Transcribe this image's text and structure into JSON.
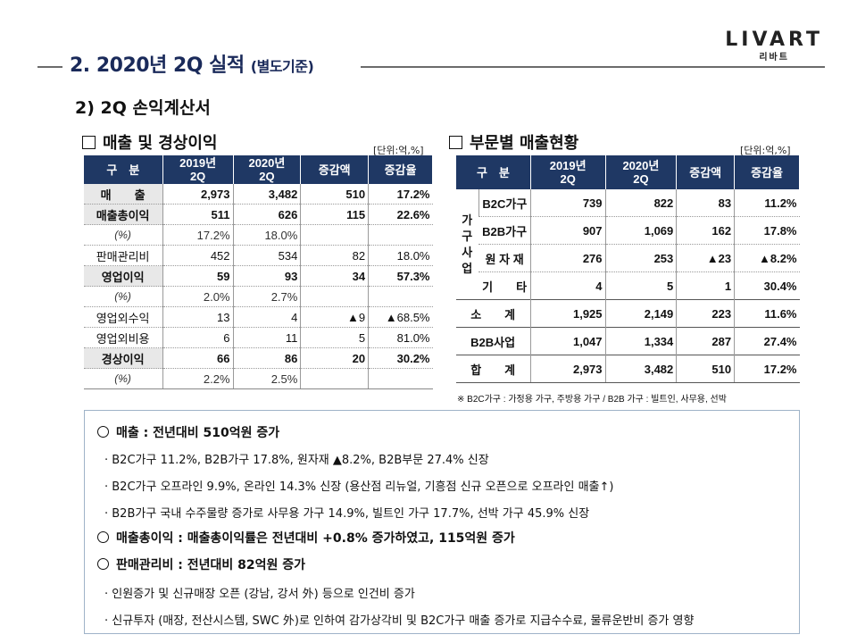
{
  "header": {
    "title": "2. 2020년 2Q 실적",
    "subtitle": "(별도기준)",
    "logo_en": "LIVART",
    "logo_ko": "리바트"
  },
  "section_title": "2) 2Q 손익계산서",
  "income": {
    "title": "매출 및 경상이익",
    "unit": "[단위:억,%]",
    "headers": [
      "구　분",
      "2019년 2Q",
      "2020년 2Q",
      "증감액",
      "증감율"
    ],
    "rows": [
      {
        "name": "매　　출",
        "y2019": "2,973",
        "y2020": "3,482",
        "diff": "510",
        "rate": "17.2%"
      },
      {
        "name": "매출총이익",
        "y2019": "511",
        "y2020": "626",
        "diff": "115",
        "rate": "22.6%"
      },
      {
        "name": "(%)",
        "y2019": "17.2%",
        "y2020": "18.0%",
        "diff": "",
        "rate": ""
      },
      {
        "name": "판매관리비",
        "y2019": "452",
        "y2020": "534",
        "diff": "82",
        "rate": "18.0%"
      },
      {
        "name": "영업이익",
        "y2019": "59",
        "y2020": "93",
        "diff": "34",
        "rate": "57.3%"
      },
      {
        "name": "(%)",
        "y2019": "2.0%",
        "y2020": "2.7%",
        "diff": "",
        "rate": ""
      },
      {
        "name": "영업외수익",
        "y2019": "13",
        "y2020": "4",
        "diff": "▲9",
        "rate": "▲68.5%"
      },
      {
        "name": "영업외비용",
        "y2019": "6",
        "y2020": "11",
        "diff": "5",
        "rate": "81.0%"
      },
      {
        "name": "경상이익",
        "y2019": "66",
        "y2020": "86",
        "diff": "20",
        "rate": "30.2%"
      },
      {
        "name": "(%)",
        "y2019": "2.2%",
        "y2020": "2.5%",
        "diff": "",
        "rate": ""
      }
    ]
  },
  "segment": {
    "title": "부문별 매출현황",
    "unit": "[단위:억,%]",
    "headers": [
      "구　분",
      "2019년 2Q",
      "2020년 2Q",
      "증감액",
      "증감율"
    ],
    "group_label": "가구사업",
    "group_rows": [
      {
        "name": "B2C가구",
        "y2019": "739",
        "y2020": "822",
        "diff": "83",
        "rate": "11.2%"
      },
      {
        "name": "B2B가구",
        "y2019": "907",
        "y2020": "1,069",
        "diff": "162",
        "rate": "17.8%"
      },
      {
        "name": "원 자 재",
        "y2019": "276",
        "y2020": "253",
        "diff": "▲23",
        "rate": "▲8.2%"
      },
      {
        "name": "기　　타",
        "y2019": "4",
        "y2020": "5",
        "diff": "1",
        "rate": "30.4%"
      }
    ],
    "other_rows": [
      {
        "name": "소　　계",
        "y2019": "1,925",
        "y2020": "2,149",
        "diff": "223",
        "rate": "11.6%"
      },
      {
        "name": "B2B사업",
        "y2019": "1,047",
        "y2020": "1,334",
        "diff": "287",
        "rate": "27.4%"
      },
      {
        "name": "합　　계",
        "y2019": "2,973",
        "y2020": "3,482",
        "diff": "510",
        "rate": "17.2%"
      }
    ],
    "note": "※ B2C가구 : 가정용 가구, 주방용 가구 / B2B 가구 : 빌트인, 사무용, 선박"
  },
  "summary": {
    "lines": [
      {
        "type": "main",
        "text": "매출 : 전년대비 510억원 증가"
      },
      {
        "type": "bullet",
        "text": "· B2C가구 11.2%, B2B가구 17.8%, 원자재 ▲8.2%, B2B부문 27.4% 신장"
      },
      {
        "type": "bullet",
        "text": "· B2C가구 오프라인 9.9%, 온라인 14.3% 신장 (용산점 리뉴얼, 기흥점 신규 오픈으로 오프라인 매출↑)"
      },
      {
        "type": "bullet",
        "text": "· B2B가구 국내 수주물량 증가로 사무용 가구 14.9%, 빌트인 가구 17.7%, 선박 가구 45.9% 신장"
      },
      {
        "type": "main",
        "text": "매출총이익 : 매출총이익률은 전년대비 +0.8% 증가하였고, 115억원 증가"
      },
      {
        "type": "main",
        "text": "판매관리비 : 전년대비 82억원 증가"
      },
      {
        "type": "bullet",
        "text": "· 인원증가 및 신규매장 오픈 (강남, 강서 外) 등으로 인건비 증가"
      },
      {
        "type": "bullet",
        "text": "· 신규투자 (매장, 전산시스템, SWC 外)로 인하여 감가상각비 및 B2C가구 매출 증가로 지급수수료, 물류운반비 증가 영향"
      }
    ]
  }
}
